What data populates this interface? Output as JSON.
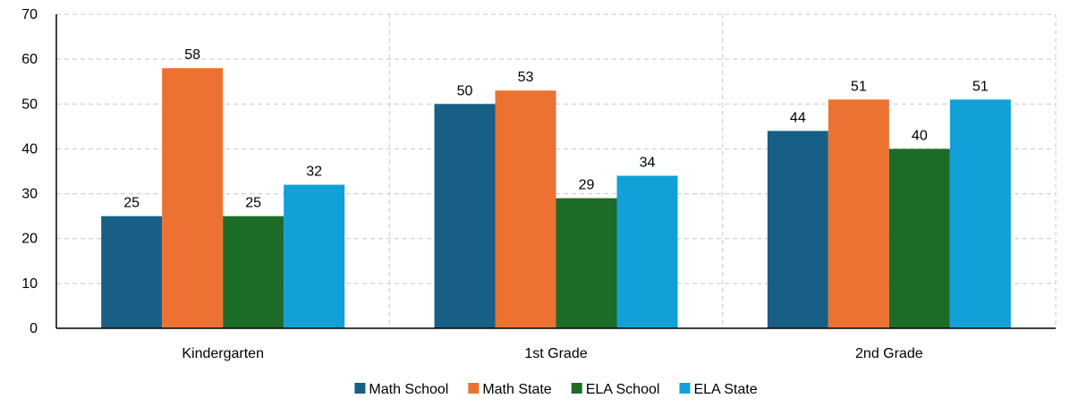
{
  "chart_data": {
    "type": "bar",
    "categories": [
      "Kindergarten",
      "1st Grade",
      "2nd Grade"
    ],
    "series": [
      {
        "name": "Math School",
        "values": [
          25,
          50,
          44
        ],
        "color": "#175f86"
      },
      {
        "name": "Math State",
        "values": [
          58,
          53,
          51
        ],
        "color": "#ec7231"
      },
      {
        "name": "ELA School",
        "values": [
          25,
          29,
          40
        ],
        "color": "#1c6c27"
      },
      {
        "name": "ELA State",
        "values": [
          32,
          34,
          51
        ],
        "color": "#11a0d8"
      }
    ],
    "ylim": [
      0,
      70
    ],
    "yticks": [
      0,
      10,
      20,
      30,
      40,
      50,
      60,
      70
    ],
    "grid": true,
    "legend": "bottom"
  }
}
